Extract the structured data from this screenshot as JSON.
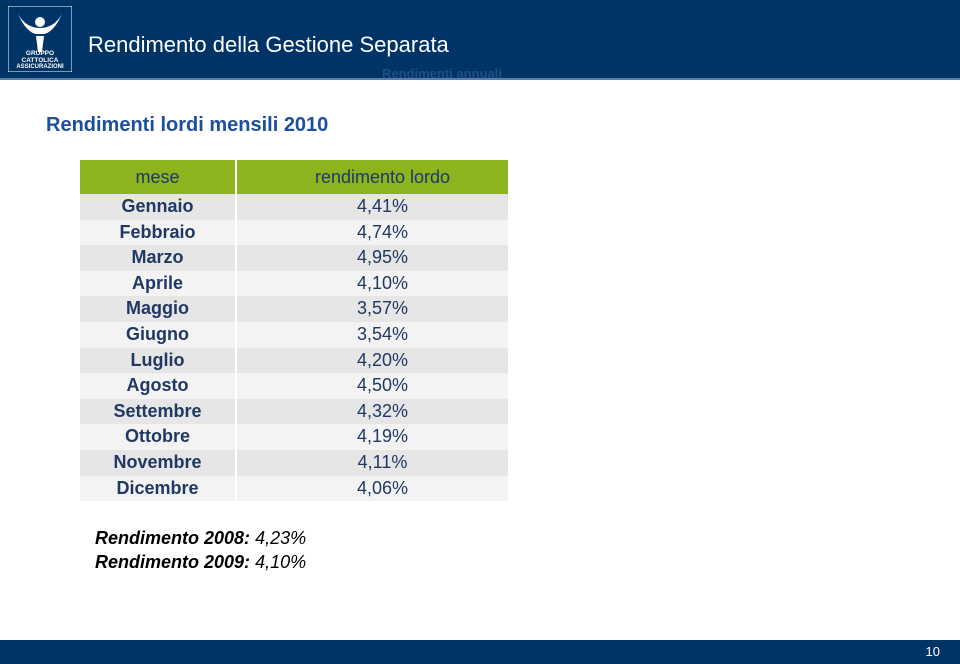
{
  "header": {
    "logo": [
      "GRUPPO",
      "CATTOLICA",
      "ASSICURAZIONI"
    ],
    "title": "Rendimento della Gestione Separata",
    "subtitle": "Rendimenti annuali"
  },
  "heading": "Rendimenti lordi mensili 2010",
  "table": {
    "columns": [
      "mese",
      "rendimento lordo"
    ],
    "rows": [
      [
        "Gennaio",
        "4,41%"
      ],
      [
        "Febbraio",
        "4,74%"
      ],
      [
        "Marzo",
        "4,95%"
      ],
      [
        "Aprile",
        "4,10%"
      ],
      [
        "Maggio",
        "3,57%"
      ],
      [
        "Giugno",
        "3,54%"
      ],
      [
        "Luglio",
        "4,20%"
      ],
      [
        "Agosto",
        "4,50%"
      ],
      [
        "Settembre",
        "4,32%"
      ],
      [
        "Ottobre",
        "4,19%"
      ],
      [
        "Novembre",
        "4,11%"
      ],
      [
        "Dicembre",
        "4,06%"
      ]
    ]
  },
  "notes": [
    {
      "label": "Rendimento 2008:",
      "value": "4,23%"
    },
    {
      "label": "Rendimento 2009:",
      "value": "4,10%"
    }
  ],
  "footer": {
    "page": "10"
  }
}
